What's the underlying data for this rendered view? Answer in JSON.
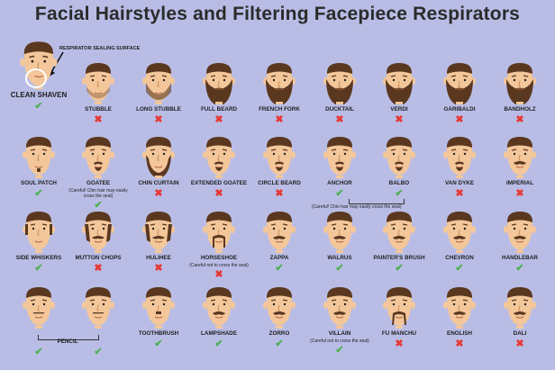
{
  "title": "Facial Hairstyles and Filtering Facepiece Respirators",
  "respirator_label": "RESPIRATOR SEALING SURFACE",
  "colors": {
    "ok": "#4caf50",
    "no": "#e53935",
    "background": "#b9bde6",
    "skin": "#f3c79a",
    "hair": "#5a3820"
  },
  "icons": {
    "ok": "check-icon",
    "no": "x-icon"
  },
  "styles": [
    {
      "name": "CLEAN SHAVEN",
      "ok": true,
      "hair": "none"
    },
    {
      "name": "STUBBLE",
      "ok": false,
      "hair": "stubble"
    },
    {
      "name": "LONG STUBBLE",
      "ok": false,
      "hair": "longstubble"
    },
    {
      "name": "FULL BEARD",
      "ok": false,
      "hair": "full"
    },
    {
      "name": "FRENCH FORK",
      "ok": false,
      "hair": "full"
    },
    {
      "name": "DUCKTAIL",
      "ok": false,
      "hair": "full"
    },
    {
      "name": "VERDI",
      "ok": false,
      "hair": "full"
    },
    {
      "name": "GARIBALDI",
      "ok": false,
      "hair": "full"
    },
    {
      "name": "BANDHOLZ",
      "ok": false,
      "hair": "full"
    },
    {
      "name": "SOUL PATCH",
      "ok": true,
      "hair": "soul"
    },
    {
      "name": "GOATEE",
      "ok": true,
      "hair": "goatee",
      "note": "(Careful! Chin hair may easily cross the seal)"
    },
    {
      "name": "CHIN CURTAIN",
      "ok": false,
      "hair": "chincurtain"
    },
    {
      "name": "EXTENDED GOATEE",
      "ok": false,
      "hair": "goatee"
    },
    {
      "name": "CIRCLE BEARD",
      "ok": false,
      "hair": "goatee"
    },
    {
      "name": "ANCHOR",
      "ok": true,
      "hair": "goatee"
    },
    {
      "name": "BALBO",
      "ok": true,
      "hair": "goatee"
    },
    {
      "name": "VAN DYKE",
      "ok": false,
      "hair": "goatee"
    },
    {
      "name": "IMPERIAL",
      "ok": false,
      "hair": "mustache"
    },
    {
      "name": "SIDE WHISKERS",
      "ok": true,
      "hair": "side"
    },
    {
      "name": "MUTTON CHOPS",
      "ok": false,
      "hair": "mutton"
    },
    {
      "name": "HULIHEE",
      "ok": false,
      "hair": "mutton"
    },
    {
      "name": "HORSESHOE",
      "ok": false,
      "hair": "horseshoe",
      "note": "(Careful not to cross the seal)"
    },
    {
      "name": "ZAPPA",
      "ok": true,
      "hair": "mustache"
    },
    {
      "name": "WALRUS",
      "ok": true,
      "hair": "mustache"
    },
    {
      "name": "PAINTER'S BRUSH",
      "ok": true,
      "hair": "mustache"
    },
    {
      "name": "CHEVRON",
      "ok": true,
      "hair": "mustache"
    },
    {
      "name": "HANDLEBAR",
      "ok": true,
      "hair": "mustache"
    },
    {
      "name": "",
      "ok": true,
      "hair": "pencil"
    },
    {
      "name": "",
      "ok": true,
      "hair": "pencil"
    },
    {
      "name": "TOOTHBRUSH",
      "ok": true,
      "hair": "toothbrush"
    },
    {
      "name": "LAMPSHADE",
      "ok": true,
      "hair": "mustache"
    },
    {
      "name": "ZORRO",
      "ok": true,
      "hair": "mustache"
    },
    {
      "name": "VILLAIN",
      "ok": true,
      "hair": "mustache",
      "note": "(Careful not to cross the seal)"
    },
    {
      "name": "FU MANCHU",
      "ok": false,
      "hair": "fumanchu"
    },
    {
      "name": "ENGLISH",
      "ok": false,
      "hair": "mustache"
    },
    {
      "name": "DALI",
      "ok": false,
      "hair": "mustache"
    }
  ],
  "group_labels": {
    "anchor_balbo_note": "(Careful! Chin hair may easily cross the seal)",
    "pencil": "PENCIL"
  }
}
